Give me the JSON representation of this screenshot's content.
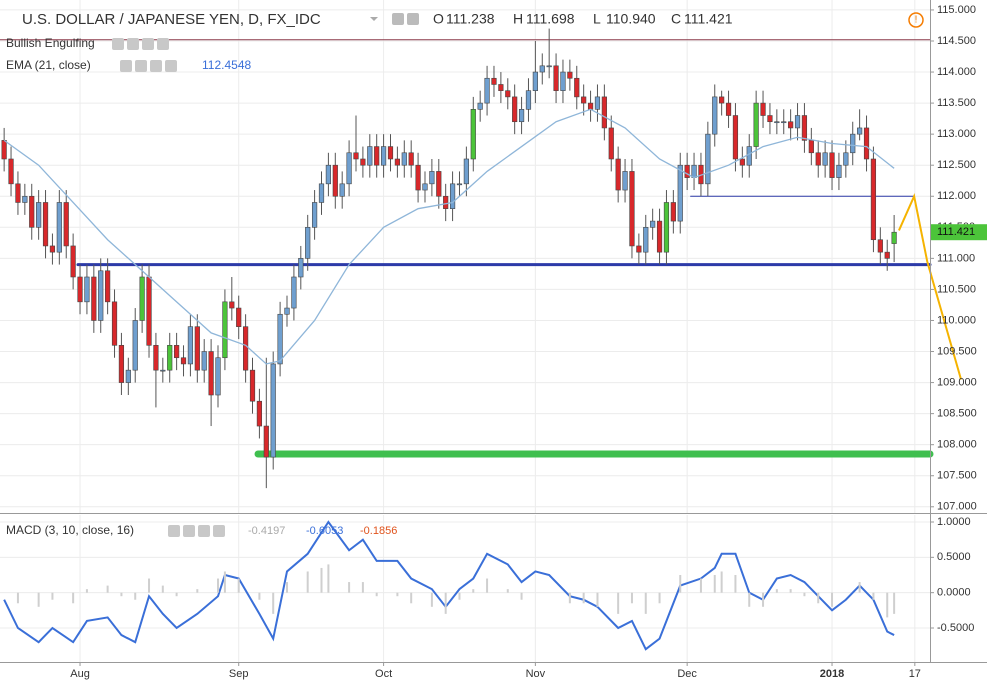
{
  "chart_data": [
    {
      "type": "candlestick",
      "title": "U.S. DOLLAR / JAPANESE YEN, D, FX_IDC",
      "ohlc_header": [
        {
          "label": "O",
          "value": "111.238"
        },
        {
          "label": "H",
          "value": "111.698"
        },
        {
          "label": "L",
          "value": "110.940"
        },
        {
          "label": "C",
          "value": "111.421"
        }
      ],
      "indicators": [
        "Bullish Engulfing",
        "EMA (21, close)"
      ],
      "up_color": "#6f9fcf",
      "down_color": "#d8282b",
      "engulfing_color": "#4cc43a",
      "wick_color": "#555555",
      "bullish_engulfing": [
        20,
        24,
        32,
        68,
        96,
        109,
        129
      ],
      "open": [
        112.9,
        112.6,
        112.2,
        111.9,
        112.0,
        111.5,
        111.9,
        111.2,
        111.1,
        111.9,
        111.2,
        110.7,
        110.3,
        110.7,
        110.0,
        110.8,
        110.3,
        109.6,
        109.0,
        109.2,
        110.0,
        110.7,
        109.6,
        109.2,
        109.2,
        109.6,
        109.4,
        109.3,
        109.9,
        109.2,
        109.5,
        108.8,
        109.4,
        110.3,
        110.2,
        109.9,
        109.2,
        108.7,
        108.3,
        107.8,
        109.3,
        110.1,
        110.2,
        110.7,
        111.0,
        111.5,
        111.9,
        112.2,
        112.5,
        112.0,
        112.2,
        112.7,
        112.6,
        112.5,
        112.8,
        112.5,
        112.8,
        112.6,
        112.5,
        112.7,
        112.5,
        112.1,
        112.2,
        112.4,
        112.0,
        111.8,
        112.2,
        112.2,
        112.6,
        113.4,
        113.5,
        113.9,
        113.8,
        113.7,
        113.6,
        113.2,
        113.4,
        113.7,
        114.0,
        114.1,
        114.1,
        113.7,
        114.0,
        113.9,
        113.6,
        113.5,
        113.4,
        113.6,
        113.1,
        112.6,
        112.1,
        112.4,
        111.2,
        111.1,
        111.5,
        111.6,
        111.1,
        111.9,
        111.6,
        112.5,
        112.3,
        112.5,
        112.2,
        113.0,
        113.6,
        113.5,
        113.3,
        112.6,
        112.5,
        112.8,
        113.5,
        113.3,
        113.2,
        113.2,
        113.2,
        113.1,
        113.3,
        112.9,
        112.7,
        112.5,
        112.7,
        112.3,
        112.5,
        112.7,
        113.0,
        113.1,
        112.6,
        111.3,
        111.1,
        111.238
      ],
      "high": [
        113.1,
        112.8,
        112.4,
        112.2,
        112.2,
        112.1,
        112.1,
        111.4,
        112.1,
        112.1,
        111.4,
        110.9,
        110.9,
        110.9,
        111.0,
        111.0,
        110.5,
        109.8,
        109.4,
        110.2,
        110.9,
        110.9,
        109.8,
        109.4,
        109.8,
        109.8,
        109.6,
        110.1,
        110.1,
        109.7,
        109.7,
        109.6,
        110.5,
        110.7,
        110.4,
        110.1,
        109.4,
        108.9,
        109.4,
        109.5,
        110.3,
        110.4,
        110.9,
        111.2,
        111.7,
        112.1,
        112.4,
        112.7,
        112.7,
        112.4,
        112.9,
        113.3,
        112.8,
        113.0,
        113.0,
        113.0,
        113.0,
        112.8,
        112.9,
        112.9,
        112.7,
        112.4,
        112.6,
        112.6,
        112.2,
        112.4,
        112.4,
        112.8,
        113.6,
        113.7,
        114.1,
        114.1,
        114.0,
        113.9,
        113.8,
        113.6,
        113.9,
        114.5,
        114.3,
        114.7,
        114.3,
        114.2,
        114.2,
        114.1,
        113.8,
        113.7,
        113.8,
        113.8,
        113.3,
        112.8,
        112.6,
        112.6,
        111.4,
        111.7,
        111.8,
        111.8,
        112.1,
        112.1,
        112.7,
        112.7,
        112.7,
        112.7,
        113.2,
        113.8,
        113.7,
        113.7,
        113.5,
        112.8,
        113.0,
        113.7,
        113.7,
        113.5,
        113.4,
        113.4,
        113.4,
        113.5,
        113.5,
        113.1,
        112.9,
        112.9,
        112.9,
        112.7,
        112.9,
        113.2,
        113.4,
        113.3,
        112.8,
        111.5,
        111.3,
        111.698
      ],
      "low": [
        112.4,
        112.0,
        111.7,
        111.7,
        111.3,
        111.3,
        111.0,
        110.9,
        110.9,
        111.0,
        110.5,
        110.1,
        110.1,
        109.8,
        109.8,
        110.1,
        109.4,
        108.8,
        108.8,
        109.0,
        109.8,
        109.4,
        108.6,
        109.0,
        109.0,
        109.2,
        109.1,
        109.1,
        109.0,
        109.0,
        108.3,
        108.6,
        109.2,
        110.0,
        109.7,
        109.0,
        108.5,
        108.1,
        107.3,
        107.6,
        109.1,
        109.9,
        110.0,
        110.5,
        110.8,
        111.3,
        111.7,
        112.0,
        111.8,
        111.8,
        112.0,
        112.4,
        112.3,
        112.3,
        112.3,
        112.3,
        112.4,
        112.3,
        112.3,
        112.3,
        111.9,
        111.9,
        112.0,
        111.8,
        111.6,
        111.6,
        112.0,
        112.0,
        112.4,
        113.2,
        113.3,
        113.6,
        113.5,
        113.4,
        113.0,
        113.0,
        113.2,
        113.5,
        113.8,
        113.9,
        113.5,
        113.5,
        113.7,
        113.4,
        113.3,
        113.2,
        113.2,
        112.9,
        112.4,
        111.9,
        111.9,
        111.0,
        110.9,
        110.9,
        111.3,
        110.9,
        110.9,
        111.4,
        111.4,
        112.1,
        112.1,
        112.0,
        112.0,
        112.8,
        113.3,
        113.1,
        112.4,
        112.3,
        112.3,
        112.6,
        113.1,
        113.0,
        113.0,
        113.0,
        112.9,
        112.9,
        112.7,
        112.5,
        112.3,
        112.3,
        112.1,
        112.1,
        112.3,
        112.5,
        112.9,
        112.4,
        111.1,
        110.9,
        110.8,
        110.94
      ],
      "close": [
        112.6,
        112.2,
        111.9,
        112.0,
        111.5,
        111.9,
        111.2,
        111.1,
        111.9,
        111.2,
        110.7,
        110.3,
        110.7,
        110.0,
        110.8,
        110.3,
        109.6,
        109.0,
        109.2,
        110.0,
        110.7,
        109.6,
        109.2,
        109.2,
        109.6,
        109.4,
        109.3,
        109.9,
        109.2,
        109.5,
        108.8,
        109.4,
        110.3,
        110.2,
        109.9,
        109.2,
        108.7,
        108.3,
        107.8,
        109.3,
        110.1,
        110.2,
        110.7,
        111.0,
        111.5,
        111.9,
        112.2,
        112.5,
        112.0,
        112.2,
        112.7,
        112.6,
        112.5,
        112.8,
        112.5,
        112.8,
        112.6,
        112.5,
        112.7,
        112.5,
        112.1,
        112.2,
        112.4,
        112.0,
        111.8,
        112.2,
        112.2,
        112.6,
        113.4,
        113.5,
        113.9,
        113.8,
        113.7,
        113.6,
        113.2,
        113.4,
        113.7,
        114.0,
        114.1,
        114.1,
        113.7,
        114.0,
        113.9,
        113.6,
        113.5,
        113.4,
        113.6,
        113.1,
        112.6,
        112.1,
        112.4,
        111.2,
        111.1,
        111.5,
        111.6,
        111.1,
        111.9,
        111.6,
        112.5,
        112.3,
        112.5,
        112.2,
        113.0,
        113.6,
        113.5,
        113.3,
        112.6,
        112.5,
        112.8,
        113.5,
        113.3,
        113.2,
        113.2,
        113.2,
        113.1,
        113.3,
        112.9,
        112.7,
        112.5,
        112.7,
        112.3,
        112.5,
        112.7,
        113.0,
        113.1,
        112.6,
        111.3,
        111.1,
        111.0,
        111.421
      ],
      "ema": {
        "name": "EMA (21, close)",
        "last_value": "112.4548",
        "color": "#8fb6d9",
        "x": [
          0,
          5,
          10,
          15,
          20,
          25,
          30,
          35,
          38,
          40,
          45,
          50,
          55,
          60,
          65,
          70,
          75,
          80,
          85,
          90,
          95,
          100,
          105,
          110,
          115,
          120,
          125,
          129
        ],
        "values": [
          112.9,
          112.5,
          111.9,
          111.3,
          110.8,
          110.3,
          109.8,
          109.6,
          109.3,
          109.35,
          110.0,
          110.9,
          111.5,
          111.8,
          111.9,
          112.4,
          112.8,
          113.2,
          113.4,
          113.1,
          112.6,
          112.3,
          112.5,
          112.8,
          112.95,
          112.85,
          112.8,
          112.45
        ]
      },
      "levels": [
        {
          "value": 114.52,
          "start": -0.6,
          "end": 134.2,
          "color": "#8b3a4a",
          "width": 1
        },
        {
          "value": 110.9,
          "start": 10.7,
          "end": 134.2,
          "color": "#2c3aa8",
          "width": 3
        },
        {
          "value": 112.0,
          "start": 99.5,
          "end": 131.9,
          "color": "#2c3aa8",
          "width": 1
        },
        {
          "value": 107.85,
          "start": 36.8,
          "end": 134.2,
          "color": "#3fbf4f",
          "width": 7
        }
      ],
      "projection": {
        "color": "#f5b300",
        "x": [
          129.7,
          131.9,
          133.8,
          138.7
        ],
        "values": [
          111.45,
          112.0,
          110.95,
          109.05
        ]
      },
      "xlim": [
        -0.6,
        134.2
      ],
      "ylim": [
        106.9,
        115.16
      ],
      "yticks": [
        {
          "value": 107,
          "label": "107.000"
        },
        {
          "value": 107.5,
          "label": "107.500"
        },
        {
          "value": 108,
          "label": "108.000"
        },
        {
          "value": 108.5,
          "label": "108.500"
        },
        {
          "value": 109,
          "label": "109.000"
        },
        {
          "value": 109.5,
          "label": "109.500"
        },
        {
          "value": 110,
          "label": "110.000"
        },
        {
          "value": 110.5,
          "label": "110.500"
        },
        {
          "value": 111,
          "label": "111.000"
        },
        {
          "value": 111.5,
          "label": "111.500"
        },
        {
          "value": 112,
          "label": "112.000"
        },
        {
          "value": 112.5,
          "label": "112.500"
        },
        {
          "value": 113,
          "label": "113.000"
        },
        {
          "value": 113.5,
          "label": "113.500"
        },
        {
          "value": 114,
          "label": "114.000"
        },
        {
          "value": 114.5,
          "label": "114.500"
        },
        {
          "value": 115,
          "label": "115.000"
        }
      ],
      "grid": true
    },
    {
      "type": "line",
      "title": "MACD (3, 10, close, 16)",
      "header_values": [
        {
          "text": "-0.4197",
          "color": "#aaaaaa"
        },
        {
          "text": "-0.6053",
          "color": "#3a6fd8"
        },
        {
          "text": "-0.1856",
          "color": "#e0531c"
        }
      ],
      "x": [
        0,
        2,
        5,
        7,
        10,
        12,
        15,
        17,
        19,
        21,
        23,
        25,
        28,
        31,
        32,
        34,
        37,
        39,
        41,
        44,
        46,
        47,
        50,
        52,
        54,
        57,
        59,
        62,
        64,
        66,
        68,
        70,
        73,
        75,
        77,
        79,
        82,
        84,
        86,
        89,
        91,
        93,
        95,
        98,
        101,
        103,
        104,
        106,
        108,
        110,
        112,
        114,
        116,
        118,
        120,
        122,
        124,
        126,
        128,
        129
      ],
      "series": [
        {
          "type": "line",
          "color": "#3a6fd8",
          "values": [
            -0.1,
            -0.5,
            -0.7,
            -0.5,
            -0.7,
            -0.4,
            -0.35,
            -0.6,
            -0.7,
            -0.05,
            -0.3,
            -0.5,
            -0.3,
            -0.05,
            0.25,
            0.2,
            -0.3,
            -0.65,
            0.3,
            0.55,
            0.85,
            1.0,
            0.6,
            0.75,
            0.45,
            0.45,
            0.2,
            0.05,
            -0.2,
            0.05,
            0.2,
            0.55,
            0.4,
            0.15,
            0.3,
            0.25,
            -0.05,
            -0.1,
            -0.2,
            -0.5,
            -0.4,
            -0.8,
            -0.65,
            0.1,
            0.2,
            0.35,
            0.55,
            0.55,
            0.0,
            -0.1,
            0.2,
            0.25,
            0.15,
            -0.05,
            -0.25,
            -0.1,
            0.1,
            -0.1,
            -0.55,
            -0.6
          ]
        },
        {
          "type": "histogram",
          "color": "#cfcfcf",
          "values": [
            0.0,
            -0.15,
            -0.2,
            -0.1,
            -0.15,
            0.05,
            0.1,
            -0.05,
            -0.1,
            0.2,
            0.1,
            -0.05,
            0.05,
            0.2,
            0.3,
            0.2,
            -0.1,
            -0.3,
            0.15,
            0.3,
            0.35,
            0.4,
            0.15,
            0.15,
            -0.05,
            -0.05,
            -0.15,
            -0.2,
            -0.3,
            -0.1,
            0.05,
            0.2,
            0.05,
            -0.1,
            0.0,
            0.0,
            -0.15,
            -0.15,
            -0.2,
            -0.3,
            -0.15,
            -0.3,
            -0.15,
            0.25,
            0.2,
            0.25,
            0.3,
            0.25,
            -0.2,
            -0.2,
            0.05,
            0.05,
            -0.05,
            -0.15,
            -0.2,
            0.0,
            0.15,
            -0.1,
            -0.35,
            -0.3
          ]
        }
      ],
      "xlim": [
        -0.6,
        134.2
      ],
      "xticks": [
        {
          "value": 11,
          "label": "Aug"
        },
        {
          "value": 34,
          "label": "Sep"
        },
        {
          "value": 55,
          "label": "Oct"
        },
        {
          "value": 77,
          "label": "Nov"
        },
        {
          "value": 99,
          "label": "Dec"
        },
        {
          "value": 120,
          "label": "2018"
        },
        {
          "value": 132,
          "label": "17"
        }
      ],
      "ylim": [
        -0.981,
        1.099
      ],
      "yticks": [
        {
          "value": 1,
          "label": "1.0000"
        },
        {
          "value": 0.5,
          "label": "0.5000"
        },
        {
          "value": 0,
          "label": "0.0000"
        },
        {
          "value": -0.5,
          "label": "-0.5000"
        }
      ],
      "grid": true
    }
  ]
}
